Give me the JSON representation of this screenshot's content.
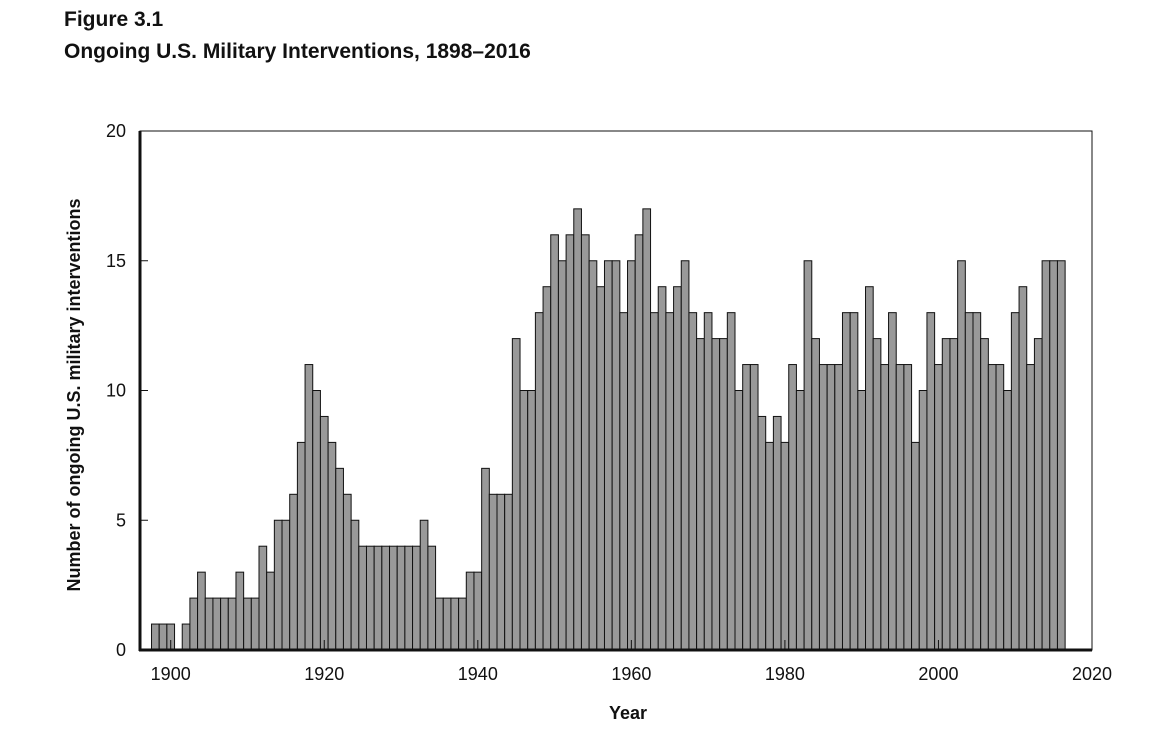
{
  "figure": {
    "label": "Figure 3.1",
    "title": "Ongoing U.S. Military Interventions, 1898–2016"
  },
  "chart_data": {
    "type": "bar",
    "title": "Ongoing U.S. Military Interventions, 1898–2016",
    "xlabel": "Year",
    "ylabel": "Number of ongoing U.S. military interventions",
    "xlim": [
      1896,
      2020
    ],
    "ylim": [
      0,
      20
    ],
    "x_ticks": [
      1900,
      1920,
      1940,
      1960,
      1980,
      2000,
      2020
    ],
    "y_ticks": [
      0,
      5,
      10,
      15,
      20
    ],
    "grid": false,
    "bar_color": "#999999",
    "edge_color": "#111111",
    "x": [
      1898,
      1899,
      1900,
      1901,
      1902,
      1903,
      1904,
      1905,
      1906,
      1907,
      1908,
      1909,
      1910,
      1911,
      1912,
      1913,
      1914,
      1915,
      1916,
      1917,
      1918,
      1919,
      1920,
      1921,
      1922,
      1923,
      1924,
      1925,
      1926,
      1927,
      1928,
      1929,
      1930,
      1931,
      1932,
      1933,
      1934,
      1935,
      1936,
      1937,
      1938,
      1939,
      1940,
      1941,
      1942,
      1943,
      1944,
      1945,
      1946,
      1947,
      1948,
      1949,
      1950,
      1951,
      1952,
      1953,
      1954,
      1955,
      1956,
      1957,
      1958,
      1959,
      1960,
      1961,
      1962,
      1963,
      1964,
      1965,
      1966,
      1967,
      1968,
      1969,
      1970,
      1971,
      1972,
      1973,
      1974,
      1975,
      1976,
      1977,
      1978,
      1979,
      1980,
      1981,
      1982,
      1983,
      1984,
      1985,
      1986,
      1987,
      1988,
      1989,
      1990,
      1991,
      1992,
      1993,
      1994,
      1995,
      1996,
      1997,
      1998,
      1999,
      2000,
      2001,
      2002,
      2003,
      2004,
      2005,
      2006,
      2007,
      2008,
      2009,
      2010,
      2011,
      2012,
      2013,
      2014,
      2015,
      2016
    ],
    "values": [
      1,
      1,
      1,
      0,
      1,
      2,
      3,
      2,
      2,
      2,
      2,
      3,
      2,
      2,
      4,
      3,
      5,
      5,
      6,
      8,
      11,
      10,
      9,
      8,
      7,
      6,
      5,
      4,
      4,
      4,
      4,
      4,
      4,
      4,
      4,
      5,
      4,
      2,
      2,
      2,
      2,
      3,
      3,
      7,
      6,
      6,
      6,
      12,
      10,
      10,
      13,
      14,
      16,
      15,
      16,
      17,
      16,
      15,
      14,
      15,
      15,
      13,
      15,
      16,
      17,
      13,
      14,
      13,
      14,
      15,
      13,
      12,
      13,
      12,
      12,
      13,
      10,
      11,
      11,
      9,
      8,
      9,
      8,
      11,
      10,
      15,
      12,
      11,
      11,
      11,
      13,
      13,
      10,
      14,
      12,
      11,
      13,
      11,
      11,
      8,
      10,
      13,
      11,
      12,
      12,
      15,
      13,
      13,
      12,
      11,
      11,
      10,
      13,
      14,
      11,
      12,
      15,
      15,
      15
    ]
  }
}
